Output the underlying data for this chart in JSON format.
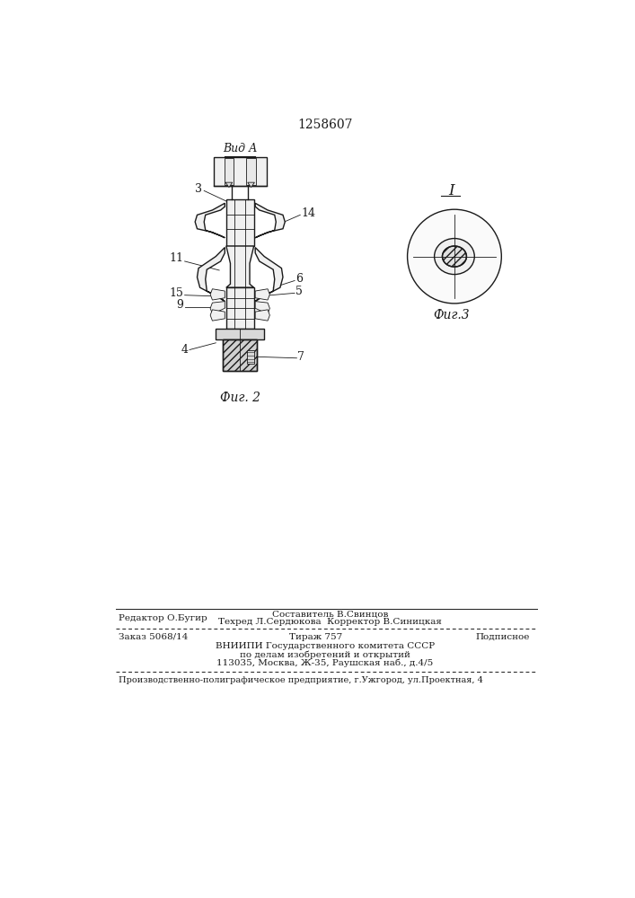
{
  "patent_number": "1258607",
  "bg_color": "#ffffff",
  "fig2_caption": "Фиг. 2",
  "fig3_caption": "Фиг.3",
  "vid_a_label": "Вид А",
  "fig1_label": "I",
  "footer_line1_left": "Редактор О.Бугир",
  "footer_line1_center": "Составитель В.Свинцов",
  "footer_line2_center": "Техред Л.Сердюкова  Корректор В.Синицкая",
  "footer_line3_left": "Заказ 5068/14",
  "footer_line3_center": "Тираж 757",
  "footer_line3_right": "Подписное",
  "footer_line4": "ВНИИПИ Государственного комитета СССР",
  "footer_line5": "по делам изобретений и открытий",
  "footer_line6": "113035, Москва, Ж-35, Раушская наб., д.4/5",
  "footer_bottom": "Производственно-полиграфическое предприятие, г.Ужгород, ул.Проектная, 4"
}
